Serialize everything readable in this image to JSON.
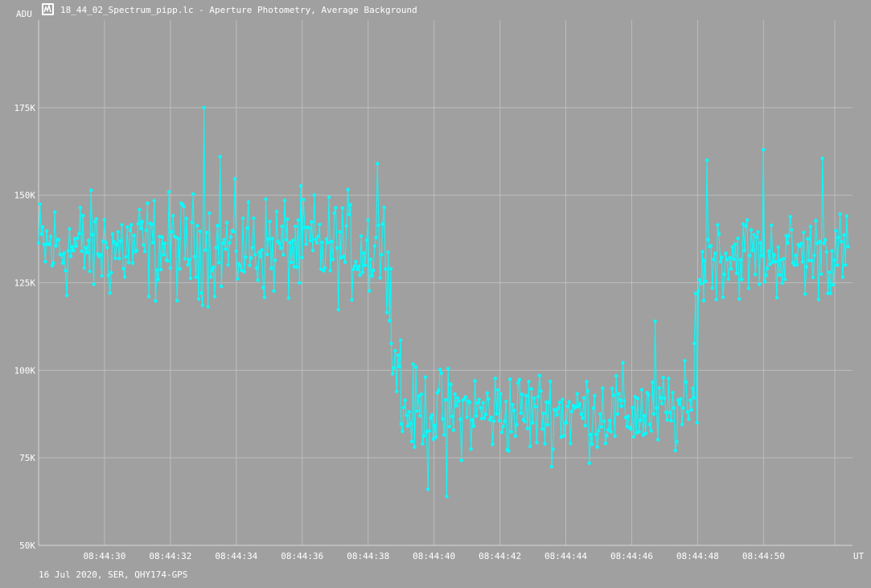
{
  "window": {
    "title": "18_44_02_Spectrum_pipp.lc - Aperture Photometry, Average Background",
    "icon": "lightcurve-app-icon"
  },
  "footer": {
    "info": "16 Jul 2020, SER, QHY174-GPS"
  },
  "colors": {
    "background": "#a0a0a0",
    "series": "#00ffff",
    "grid": "#bdbdbd",
    "text": "#ffffff"
  },
  "chart_data": {
    "type": "line",
    "ylabel": "ADU",
    "xlabel": "UT",
    "ylim": [
      50000,
      200000
    ],
    "xlim": [
      "08:44:28",
      "08:44:52.7"
    ],
    "y_ticks": [
      {
        "value": 50000,
        "label": "50K"
      },
      {
        "value": 75000,
        "label": "75K"
      },
      {
        "value": 100000,
        "label": "100K"
      },
      {
        "value": 125000,
        "label": "125K"
      },
      {
        "value": 150000,
        "label": "150K"
      },
      {
        "value": 175000,
        "label": "175K"
      }
    ],
    "x_ticks": [
      "08:44:30",
      "08:44:32",
      "08:44:34",
      "08:44:36",
      "08:44:38",
      "08:44:40",
      "08:44:42",
      "08:44:44",
      "08:44:46",
      "08:44:48",
      "08:44:50"
    ],
    "series": [
      {
        "segments": [
          {
            "t_start": "08:44:28",
            "t_end": "08:44:38.7",
            "mean": 135000,
            "spread": 11000
          },
          {
            "t_start": "08:44:38.7",
            "t_end": "08:44:39.0",
            "mean": 103000,
            "spread": 6000
          },
          {
            "t_start": "08:44:39.0",
            "t_end": "08:44:47.9",
            "mean": 88000,
            "spread": 9000
          },
          {
            "t_start": "08:44:47.9",
            "t_end": "08:44:48.2",
            "mean": 125000,
            "spread": 10000
          },
          {
            "t_start": "08:44:48.2",
            "t_end": "08:44:52.6",
            "mean": 133000,
            "spread": 9000
          }
        ],
        "extremes": [
          {
            "t": "08:44:33.0",
            "value": 175000
          },
          {
            "t": "08:44:33.5",
            "value": 161000
          },
          {
            "t": "08:44:38.3",
            "value": 159000
          },
          {
            "t": "08:44:40.4",
            "value": 64000
          },
          {
            "t": "08:44:39.8",
            "value": 66000
          },
          {
            "t": "08:44:48.3",
            "value": 160000
          },
          {
            "t": "08:44:50.0",
            "value": 163000
          },
          {
            "t": "08:44:51.8",
            "value": 160500
          },
          {
            "t": "08:44:46.7",
            "value": 114000
          },
          {
            "t": "08:44:48.0",
            "value": 85000
          }
        ]
      }
    ]
  }
}
